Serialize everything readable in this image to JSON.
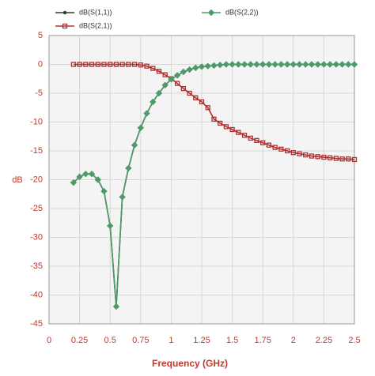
{
  "chart_data": {
    "type": "line",
    "x_label": "Frequency (GHz)",
    "y_label": "dB",
    "x": [
      0.2,
      0.25,
      0.3,
      0.35,
      0.4,
      0.45,
      0.5,
      0.55,
      0.6,
      0.65,
      0.7,
      0.75,
      0.8,
      0.85,
      0.9,
      0.95,
      1.0,
      1.05,
      1.1,
      1.15,
      1.2,
      1.25,
      1.3,
      1.35,
      1.4,
      1.45,
      1.5,
      1.55,
      1.6,
      1.65,
      1.7,
      1.75,
      1.8,
      1.85,
      1.9,
      1.95,
      2.0,
      2.05,
      2.1,
      2.15,
      2.2,
      2.25,
      2.3,
      2.35,
      2.4,
      2.45,
      2.5
    ],
    "series": [
      {
        "name": "dB(S(1,1))",
        "color": "#2e3b2e",
        "marker": "circle",
        "values": [
          -20.5,
          -19.5,
          -19,
          -19,
          -20,
          -22,
          -28,
          -42,
          -23,
          -18,
          -14,
          -11,
          -8.5,
          -6.5,
          -5,
          -3.6,
          -2.6,
          -1.9,
          -1.3,
          -0.9,
          -0.6,
          -0.4,
          -0.3,
          -0.2,
          -0.1,
          0,
          0,
          0,
          0,
          0,
          0,
          0,
          0,
          0,
          0,
          0,
          0,
          0,
          0,
          0,
          0,
          0,
          0,
          0,
          0,
          0,
          0
        ]
      },
      {
        "name": "dB(S(2,1))",
        "color": "#b03030",
        "marker": "square",
        "values": [
          0,
          0,
          0,
          0,
          0,
          0,
          0,
          0,
          0,
          0,
          0,
          -0.1,
          -0.3,
          -0.7,
          -1.2,
          -1.8,
          -2.5,
          -3.3,
          -4.2,
          -5,
          -5.8,
          -6.5,
          -7.5,
          -9.5,
          -10.2,
          -10.8,
          -11.3,
          -11.8,
          -12.3,
          -12.8,
          -13.2,
          -13.6,
          -14,
          -14.4,
          -14.7,
          -15,
          -15.3,
          -15.5,
          -15.7,
          -15.9,
          -16,
          -16.1,
          -16.2,
          -16.3,
          -16.4,
          -16.4,
          -16.5
        ]
      },
      {
        "name": "dB(S(2,2))",
        "color": "#4e9a6a",
        "marker": "diamond",
        "values": [
          -20.5,
          -19.5,
          -19,
          -19,
          -20,
          -22,
          -28,
          -42,
          -23,
          -18,
          -14,
          -11,
          -8.5,
          -6.5,
          -5,
          -3.6,
          -2.6,
          -1.9,
          -1.3,
          -0.9,
          -0.6,
          -0.4,
          -0.3,
          -0.2,
          -0.1,
          0,
          0,
          0,
          0,
          0,
          0,
          0,
          0,
          0,
          0,
          0,
          0,
          0,
          0,
          0,
          0,
          0,
          0,
          0,
          0,
          0,
          0
        ]
      }
    ],
    "xlim": [
      0,
      2.5
    ],
    "xticks": [
      0,
      0.25,
      0.5,
      0.75,
      1,
      1.25,
      1.5,
      1.75,
      2,
      2.25,
      2.5
    ],
    "ylim": [
      -45,
      5
    ],
    "yticks": [
      5,
      0,
      -5,
      -10,
      -15,
      -20,
      -25,
      -30,
      -35,
      -40,
      -45
    ],
    "grid": true
  }
}
